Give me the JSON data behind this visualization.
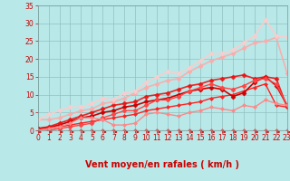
{
  "xlabel": "Vent moyen/en rafales ( km/h )",
  "xlim": [
    0,
    23
  ],
  "ylim": [
    0,
    35
  ],
  "xticks": [
    0,
    1,
    2,
    3,
    4,
    5,
    6,
    7,
    8,
    9,
    10,
    11,
    12,
    13,
    14,
    15,
    16,
    17,
    18,
    19,
    20,
    21,
    22,
    23
  ],
  "yticks": [
    0,
    5,
    10,
    15,
    20,
    25,
    30,
    35
  ],
  "background_color": "#b8e8e8",
  "grid_color": "#90c0c0",
  "series": [
    {
      "x": [
        0,
        1,
        2,
        3,
        4,
        5,
        6,
        7,
        8,
        9,
        10,
        11,
        12,
        13,
        14,
        15,
        16,
        17,
        18,
        19,
        20,
        21,
        22,
        23
      ],
      "y": [
        0,
        0,
        0,
        0,
        0,
        0,
        0,
        0,
        0,
        0,
        0,
        0,
        0,
        0,
        0,
        0,
        0,
        0,
        0,
        0,
        0,
        0,
        0,
        0
      ],
      "color": "#ff5555",
      "linewidth": 0.8,
      "marker": "D",
      "markersize": 2.0,
      "alpha": 1.0
    },
    {
      "x": [
        0,
        1,
        2,
        3,
        4,
        5,
        6,
        7,
        8,
        9,
        10,
        11,
        12,
        13,
        14,
        15,
        16,
        17,
        18,
        19,
        20,
        21,
        22,
        23
      ],
      "y": [
        0.5,
        0.5,
        1.0,
        1.5,
        2.0,
        2.5,
        3.0,
        3.5,
        4.0,
        4.5,
        5.5,
        6.0,
        6.5,
        7.0,
        7.5,
        8.0,
        9.0,
        9.5,
        10.0,
        11.0,
        12.0,
        13.0,
        7.0,
        6.5
      ],
      "color": "#ff2222",
      "linewidth": 1.0,
      "marker": "D",
      "markersize": 2.0,
      "alpha": 1.0
    },
    {
      "x": [
        0,
        1,
        2,
        3,
        4,
        5,
        6,
        7,
        8,
        9,
        10,
        11,
        12,
        13,
        14,
        15,
        16,
        17,
        18,
        19,
        20,
        21,
        22,
        23
      ],
      "y": [
        0.5,
        0.8,
        1.5,
        2.5,
        3.5,
        4.0,
        5.0,
        5.5,
        6.5,
        7.0,
        8.0,
        8.5,
        9.0,
        10.0,
        11.0,
        11.5,
        12.0,
        11.5,
        9.5,
        10.5,
        13.5,
        15.0,
        12.5,
        7.0
      ],
      "color": "#cc0000",
      "linewidth": 1.2,
      "marker": "D",
      "markersize": 2.5,
      "alpha": 1.0
    },
    {
      "x": [
        0,
        1,
        2,
        3,
        4,
        5,
        6,
        7,
        8,
        9,
        10,
        11,
        12,
        13,
        14,
        15,
        16,
        17,
        18,
        19,
        20,
        21,
        22,
        23
      ],
      "y": [
        0.5,
        1.0,
        2.0,
        3.0,
        4.0,
        5.0,
        6.0,
        7.0,
        7.5,
        8.0,
        9.5,
        10.0,
        10.5,
        11.5,
        12.5,
        13.0,
        14.0,
        14.5,
        15.0,
        15.5,
        14.5,
        15.0,
        14.5,
        6.5
      ],
      "color": "#ee1111",
      "linewidth": 1.2,
      "marker": "D",
      "markersize": 2.5,
      "alpha": 0.9
    },
    {
      "x": [
        0,
        1,
        2,
        3,
        4,
        5,
        6,
        7,
        8,
        9,
        10,
        11,
        12,
        13,
        14,
        15,
        16,
        17,
        18,
        19,
        20,
        21,
        22,
        23
      ],
      "y": [
        3.0,
        3.0,
        3.5,
        4.5,
        5.5,
        6.0,
        7.5,
        8.0,
        9.0,
        10.5,
        12.0,
        13.0,
        14.0,
        14.5,
        16.5,
        18.0,
        19.5,
        20.5,
        21.5,
        23.0,
        24.5,
        25.0,
        26.0,
        16.0
      ],
      "color": "#ffaaaa",
      "linewidth": 1.2,
      "marker": "D",
      "markersize": 2.5,
      "alpha": 0.9
    },
    {
      "x": [
        0,
        1,
        2,
        3,
        4,
        5,
        6,
        7,
        8,
        9,
        10,
        11,
        12,
        13,
        14,
        15,
        16,
        17,
        18,
        19,
        20,
        21,
        22,
        23
      ],
      "y": [
        0,
        0,
        0.5,
        1.0,
        1.5,
        2.0,
        3.5,
        4.5,
        5.5,
        5.5,
        7.0,
        8.5,
        8.5,
        9.5,
        11.0,
        12.0,
        13.0,
        12.0,
        11.5,
        12.5,
        14.0,
        14.5,
        13.0,
        7.0
      ],
      "color": "#ff4444",
      "linewidth": 1.0,
      "marker": "D",
      "markersize": 2.5,
      "alpha": 1.0
    },
    {
      "x": [
        0,
        1,
        2,
        3,
        4,
        5,
        6,
        7,
        8,
        9,
        10,
        11,
        12,
        13,
        14,
        15,
        16,
        17,
        18,
        19,
        20,
        21,
        22,
        23
      ],
      "y": [
        3.0,
        4.5,
        5.5,
        6.5,
        6.5,
        7.5,
        9.0,
        8.5,
        10.5,
        11.0,
        13.5,
        15.0,
        16.5,
        16.0,
        17.5,
        19.5,
        21.5,
        21.5,
        22.5,
        24.5,
        26.5,
        31.0,
        26.5,
        26.0
      ],
      "color": "#ffcccc",
      "linewidth": 1.2,
      "marker": "D",
      "markersize": 2.5,
      "alpha": 0.9
    },
    {
      "x": [
        0,
        1,
        2,
        3,
        4,
        5,
        6,
        7,
        8,
        9,
        10,
        11,
        12,
        13,
        14,
        15,
        16,
        17,
        18,
        19,
        20,
        21,
        22,
        23
      ],
      "y": [
        0,
        0.5,
        1.0,
        2.0,
        3.5,
        3.5,
        3.0,
        1.5,
        1.5,
        2.0,
        4.5,
        5.0,
        4.5,
        4.0,
        5.0,
        5.5,
        6.5,
        6.0,
        5.5,
        7.0,
        6.5,
        8.5,
        7.5,
        7.0
      ],
      "color": "#ff8888",
      "linewidth": 1.0,
      "marker": "D",
      "markersize": 2.0,
      "alpha": 1.0
    }
  ],
  "label_color": "#cc0000",
  "tick_fontsize": 5.5,
  "xlabel_fontsize": 7.0
}
